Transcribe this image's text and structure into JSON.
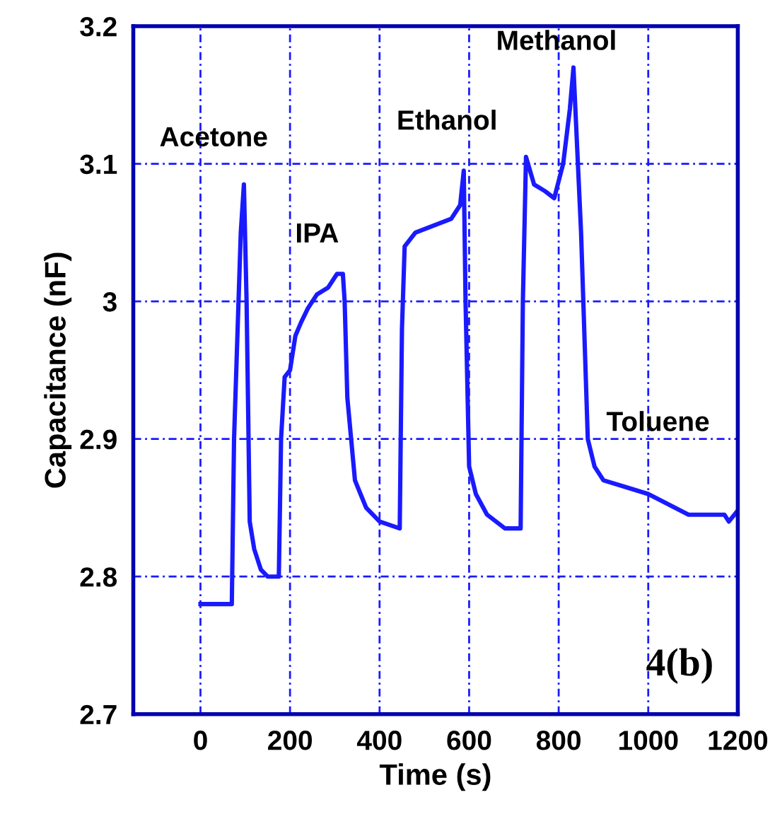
{
  "chart_data": {
    "type": "line",
    "xlabel": "Time (s)",
    "ylabel": "Capacitance (nF)",
    "xlim": [
      -150,
      1200
    ],
    "ylim": [
      2.7,
      3.2
    ],
    "xticks": [
      0,
      200,
      400,
      600,
      800,
      1000,
      1200
    ],
    "yticks": [
      2.7,
      2.8,
      2.9,
      3,
      3.1,
      3.2
    ],
    "grid": true,
    "line_style": "solid",
    "marker": "none",
    "series": [
      {
        "color": "#1a1aff",
        "x": [
          0,
          70,
          75,
          90,
          97,
          103,
          110,
          120,
          135,
          150,
          175,
          180,
          188,
          200,
          212,
          225,
          240,
          260,
          285,
          305,
          318,
          322,
          328,
          345,
          370,
          400,
          445,
          450,
          456,
          480,
          520,
          560,
          580,
          588,
          592,
          600,
          615,
          640,
          680,
          715,
          720,
          727,
          745,
          770,
          790,
          810,
          825,
          833,
          850,
          865,
          880,
          900,
          950,
          1000,
          1030,
          1090,
          1170,
          1180,
          1200
        ],
        "values": [
          2.78,
          2.78,
          2.9,
          3.05,
          3.085,
          3.0,
          2.84,
          2.82,
          2.805,
          2.8,
          2.8,
          2.9,
          2.945,
          2.95,
          2.975,
          2.985,
          2.995,
          3.005,
          3.01,
          3.02,
          3.02,
          3.0,
          2.93,
          2.87,
          2.85,
          2.84,
          2.835,
          2.98,
          3.04,
          3.05,
          3.055,
          3.06,
          3.07,
          3.095,
          3.0,
          2.88,
          2.86,
          2.845,
          2.835,
          2.835,
          3.0,
          3.105,
          3.085,
          3.08,
          3.075,
          3.1,
          3.14,
          3.17,
          3.05,
          2.9,
          2.88,
          2.87,
          2.865,
          2.86,
          2.855,
          2.845,
          2.845,
          2.84,
          2.848
        ]
      }
    ],
    "annotations": [
      "Acetone",
      "IPA",
      "Ethanol",
      "Methanol",
      "Toluene",
      "4(b)"
    ]
  }
}
